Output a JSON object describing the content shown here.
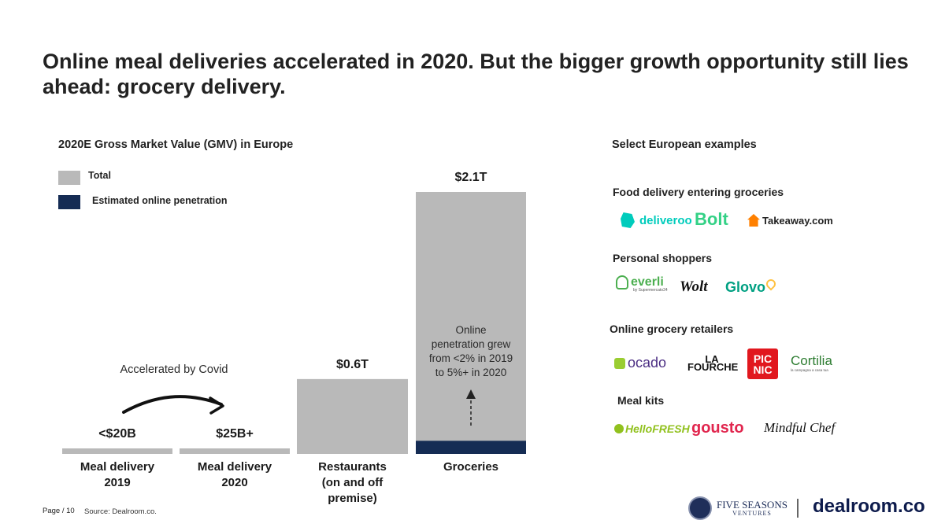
{
  "title": "Online meal deliveries accelerated in 2020. But the bigger growth opportunity still lies ahead: grocery delivery.",
  "colors": {
    "total": "#b9b9b9",
    "online": "#152c54",
    "text": "#1a1a1a"
  },
  "chart_data": {
    "type": "bar",
    "title": "2020E Gross Market Value (GMV) in Europe",
    "legend": [
      {
        "name": "Total",
        "color": "#b9b9b9"
      },
      {
        "name": "Estimated online penetration",
        "color": "#152c54"
      }
    ],
    "legend_position": "top-left",
    "ylim": [
      0,
      2.1
    ],
    "unit": "T (USD trillions)",
    "categories": [
      "Meal delivery\n2019",
      "Meal delivery\n2020",
      "Restaurants\n(on and off\npremise)",
      "Groceries"
    ],
    "series": [
      {
        "name": "Total",
        "values": [
          0.02,
          0.025,
          0.6,
          2.1
        ]
      },
      {
        "name": "Estimated online penetration",
        "values": [
          0,
          0,
          0,
          0.105
        ]
      }
    ],
    "value_labels": [
      "<$20B",
      "$25B+",
      "$0.6T",
      "$2.1T"
    ],
    "annotations": [
      {
        "text": "Accelerated by Covid",
        "between": [
          "Meal delivery\n2019",
          "Meal delivery\n2020"
        ]
      },
      {
        "text": "Online\npenetration grew\nfrom <2% in 2019\nto 5%+ in 2020",
        "category": "Groceries"
      }
    ]
  },
  "examples": {
    "title": "Select European examples",
    "sections": [
      {
        "title": "Food delivery entering groceries",
        "logos": [
          "deliveroo",
          "Bolt",
          "Takeaway.com"
        ]
      },
      {
        "title": "Personal shoppers",
        "logos": [
          "everli",
          "by Supermercato24",
          "Wolt",
          "Glovo"
        ]
      },
      {
        "title": "Online grocery retailers",
        "logos": [
          "ocado",
          "LA FOURCHE",
          "PIC NIC",
          "Cortilia",
          "la campagna a casa tua"
        ]
      },
      {
        "title": "Meal kits",
        "logos": [
          "HelloFRESH",
          "gousto",
          "Mindful Chef"
        ]
      }
    ]
  },
  "footer": {
    "page": "Page / 10",
    "source": "Source: Dealroom.co.",
    "brand_fs_line1": "FIVE SEASONS",
    "brand_fs_line2": "VENTURES",
    "brand_dealroom": "dealroom.co"
  }
}
